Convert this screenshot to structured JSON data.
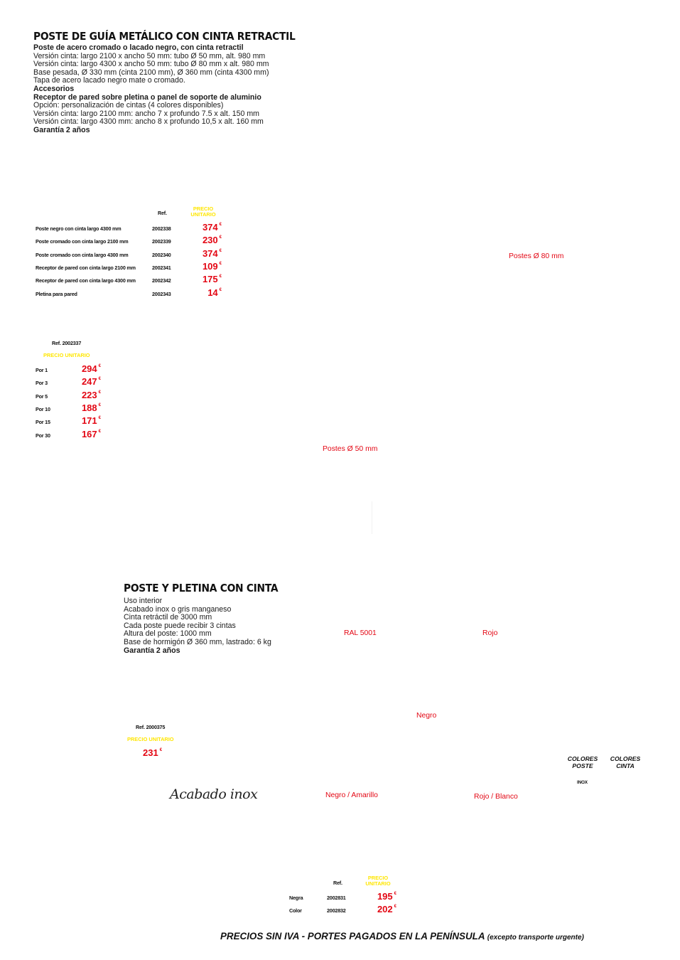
{
  "section1": {
    "title": "POSTE DE GUÍA METÁLICO CON CINTA RETRACTIL",
    "lines": [
      {
        "text": "Poste de acero cromado o lacado negro, con cinta retractil",
        "bold": true
      },
      {
        "text": "Versión cinta: largo 2100 x ancho 50 mm: tubo Ø 50 mm, alt. 980 mm",
        "bold": false
      },
      {
        "text": "Versión cinta: largo 4300 x ancho 50 mm: tubo Ø 80 mm x alt. 980 mm",
        "bold": false
      },
      {
        "text": "Base pesada, Ø 330 mm (cinta 2100 mm), Ø 360 mm (cinta 4300 mm)",
        "bold": false
      },
      {
        "text": "Tapa de acero lacado negro mate o cromado.",
        "bold": false
      },
      {
        "text": "Accesorios",
        "bold": true
      },
      {
        "text": "Receptor de pared sobre pletina o panel de soporte de aluminio",
        "bold": true
      },
      {
        "text": "Opción: personalización de cintas (4 colores disponibles)",
        "bold": false
      },
      {
        "text": "Versión cinta: largo 2100 mm: ancho 7 x profundo 7.5 x alt. 150 mm",
        "bold": false
      },
      {
        "text": "Versión cinta: largo 4300 mm: ancho 8 x profundo 10,5 x alt. 160 mm",
        "bold": false
      },
      {
        "text": "Garantía 2 años",
        "bold": true
      }
    ],
    "table": {
      "ref_header": "Ref.",
      "price_header_1": "PRECIO",
      "price_header_2": "UNITARIO",
      "currency": "€",
      "rows": [
        {
          "name": "Poste negro con cinta largo 4300 mm",
          "ref": "2002338",
          "price": "374"
        },
        {
          "name": "Poste cromado con cinta largo 2100 mm",
          "ref": "2002339",
          "price": "230"
        },
        {
          "name": "Poste cromado con cinta largo 4300 mm",
          "ref": "2002340",
          "price": "374"
        },
        {
          "name": "Receptor de pared con cinta largo 2100 mm",
          "ref": "2002341",
          "price": "109"
        },
        {
          "name": "Receptor de pared con cinta largo 4300 mm",
          "ref": "2002342",
          "price": "175"
        },
        {
          "name": "Pletina para pared",
          "ref": "2002343",
          "price": "14"
        }
      ]
    },
    "caption_80": "Postes Ø 80 mm",
    "caption_50": "Postes Ø 50 mm",
    "qty_table": {
      "ref": "Ref. 2002337",
      "price_header": "PRECIO UNITARIO",
      "rows": [
        {
          "qty": "Por 1",
          "price": "294"
        },
        {
          "qty": "Por 3",
          "price": "247"
        },
        {
          "qty": "Por 5",
          "price": "223"
        },
        {
          "qty": "Por 10",
          "price": "188"
        },
        {
          "qty": "Por 15",
          "price": "171"
        },
        {
          "qty": "Por 30",
          "price": "167"
        }
      ]
    }
  },
  "section2": {
    "title": "POSTE Y PLETINA CON CINTA",
    "lines": [
      {
        "text": "Uso interior",
        "bold": false
      },
      {
        "text": "Acabado inox o gris manganeso",
        "bold": false
      },
      {
        "text": "Cinta retráctil de 3000 mm",
        "bold": false
      },
      {
        "text": "Cada poste puede recibir 3 cintas",
        "bold": false
      },
      {
        "text": "Altura del poste: 1000 mm",
        "bold": false
      },
      {
        "text": "Base de hormigón Ø 360 mm, lastrado: 6 kg",
        "bold": false
      },
      {
        "text": "Garantía 2 años",
        "bold": true
      }
    ],
    "ref": "Ref. 2000375",
    "price_header": "PRECIO UNITARIO",
    "price": "231",
    "finish_label": "Acabado inox",
    "swatches": {
      "ral": "RAL 5001",
      "rojo": "Rojo",
      "negro": "Negro",
      "negro_amarillo": "Negro / Amarillo",
      "rojo_blanco": "Rojo / Blanco"
    },
    "colores_poste_1": "COLORES",
    "colores_poste_2": "POSTE",
    "colores_cinta_1": "COLORES",
    "colores_cinta_2": "CINTA",
    "inox": "INOX",
    "small_table": {
      "ref_header": "Ref.",
      "price_header_1": "PRECIO",
      "price_header_2": "UNITARIO",
      "rows": [
        {
          "name": "Negra",
          "ref": "2002831",
          "price": "195"
        },
        {
          "name": "Color",
          "ref": "2002832",
          "price": "202"
        }
      ]
    }
  },
  "footer": {
    "main": "PRECIOS SIN IVA - PORTES PAGADOS EN LA PENÍNSULA",
    "note": "(excepto transporte urgente)"
  }
}
